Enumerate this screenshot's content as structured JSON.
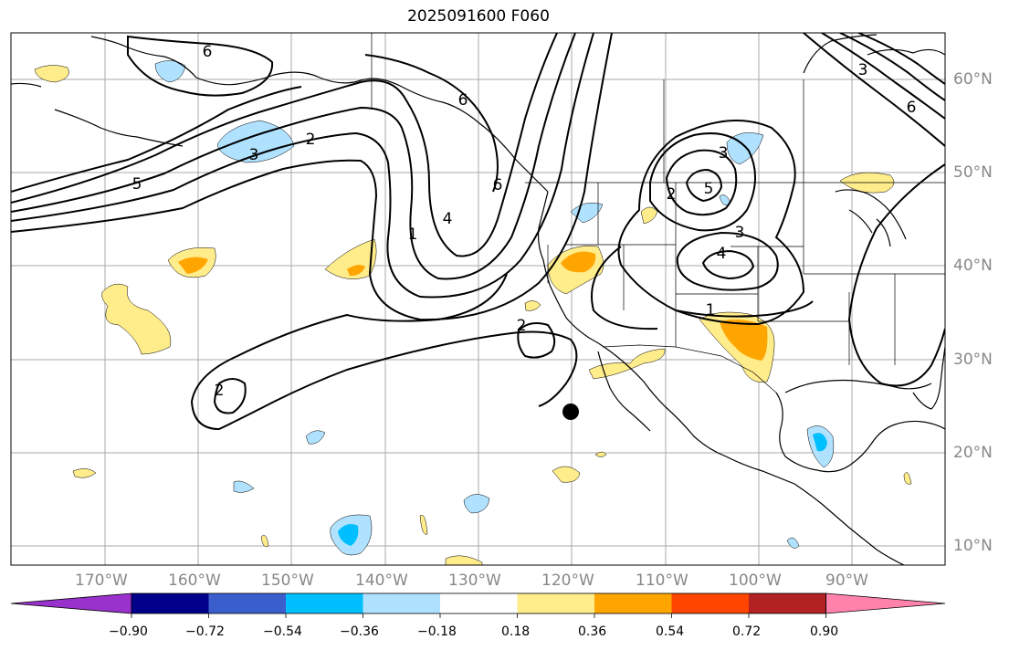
{
  "title": "2025091600 F060",
  "lat_labels": [
    "60°N",
    "50°N",
    "40°N",
    "30°N",
    "20°N",
    "10°N"
  ],
  "lon_labels": [
    "170°W",
    "160°W",
    "150°W",
    "140°W",
    "130°W",
    "120°W",
    "110°W",
    "100°W",
    "90°W"
  ],
  "colorbar": {
    "ticks": [
      "−0.90",
      "−0.72",
      "−0.54",
      "−0.36",
      "−0.18",
      "0.18",
      "0.36",
      "0.54",
      "0.72",
      "0.90"
    ],
    "colors": [
      "#9932cc",
      "#00008b",
      "#3a5fcd",
      "#00bfff",
      "#b0e2ff",
      "#ffffff",
      "#ffec8b",
      "#ffa500",
      "#ff4500",
      "#b22222",
      "#ff82ab"
    ]
  },
  "contour_labels": [
    "6",
    "6",
    "6",
    "6",
    "5",
    "5",
    "4",
    "4",
    "3",
    "3",
    "3",
    "3",
    "2",
    "2",
    "2",
    "2",
    "1",
    "1"
  ]
}
